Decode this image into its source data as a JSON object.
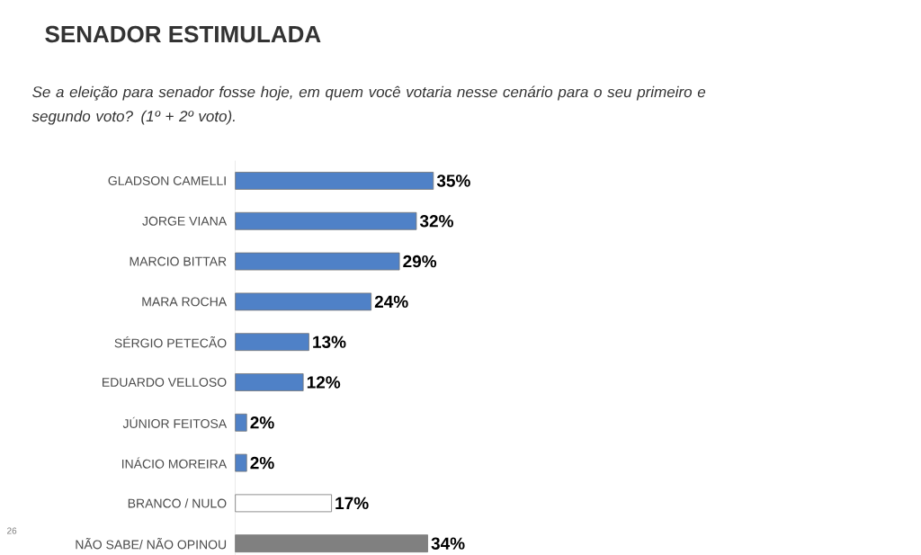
{
  "chart_data": {
    "type": "bar",
    "orientation": "horizontal",
    "title": "SENADOR ESTIMULADA",
    "subtitle": "Se a eleição para senador fosse hoje, em quem você votaria nesse cenário para o seu primeiro e segundo voto? (1º + 2º voto).",
    "categories": [
      "GLADSON CAMELLI",
      "JORGE VIANA",
      "MARCIO BITTAR",
      "MARA ROCHA",
      "SÉRGIO PETECÃO",
      "EDUARDO VELLOSO",
      "JÚNIOR FEITOSA",
      "INÁCIO MOREIRA",
      "BRANCO / NULO",
      "NÃO SABE/ NÃO OPINOU"
    ],
    "values": [
      35,
      32,
      29,
      24,
      13,
      12,
      2,
      2,
      17,
      34
    ],
    "value_labels": [
      "35%",
      "32%",
      "29%",
      "24%",
      "13%",
      "12%",
      "2%",
      "2%",
      "17%",
      "34%"
    ],
    "colors": [
      "#4f81c7",
      "#4f81c7",
      "#4f81c7",
      "#4f81c7",
      "#4f81c7",
      "#4f81c7",
      "#4f81c7",
      "#4f81c7",
      "#ffffff",
      "#808080"
    ],
    "tick_labels": "y",
    "annotations": [
      "26"
    ]
  }
}
